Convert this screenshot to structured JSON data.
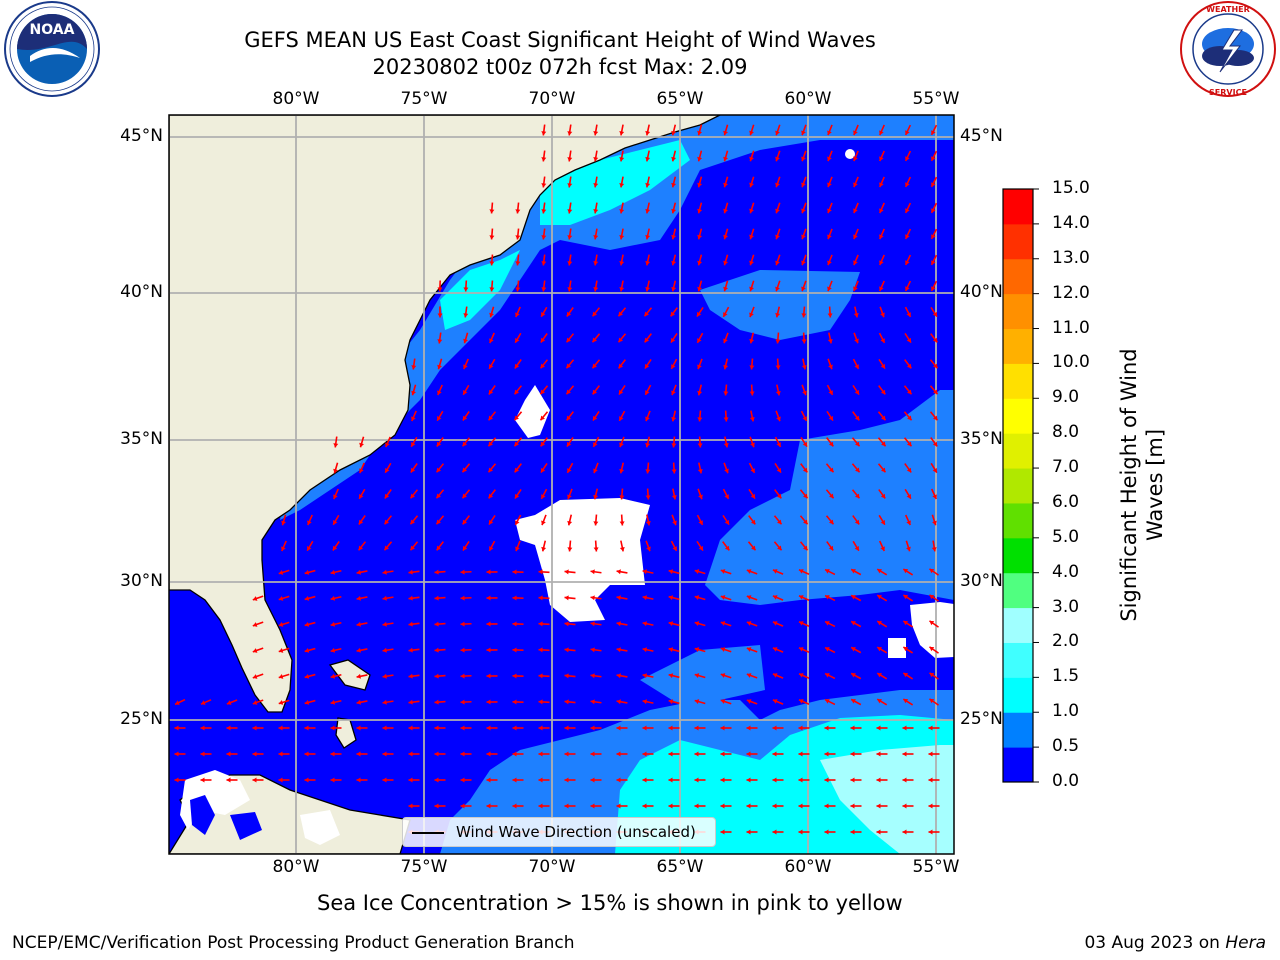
{
  "title_line1": "GEFS MEAN US East Coast Significant Height of Wind Waves",
  "title_line2": "20230802 t00z 072h fcst   Max: 2.09",
  "lon_ticks": [
    "80°W",
    "75°W",
    "70°W",
    "65°W",
    "60°W",
    "55°W"
  ],
  "lat_ticks": [
    "45°N",
    "40°N",
    "35°N",
    "30°N",
    "25°N"
  ],
  "legend_label": "Wind Wave Direction (unscaled)",
  "colorbar": {
    "label": "Significant Height of Wind Waves [m]",
    "ticks": [
      "0.0",
      "0.5",
      "1.0",
      "1.5",
      "2.0",
      "3.0",
      "4.0",
      "5.0",
      "6.0",
      "7.0",
      "8.0",
      "9.0",
      "10.0",
      "11.0",
      "12.0",
      "13.0",
      "14.0",
      "15.0"
    ],
    "colors": [
      "#0000ff",
      "#0080ff",
      "#00ffff",
      "#40ffff",
      "#a0ffff",
      "#50ff80",
      "#00e000",
      "#60e000",
      "#b0e800",
      "#e0f000",
      "#ffff00",
      "#ffe000",
      "#ffb000",
      "#ff9000",
      "#ff6800",
      "#ff3000",
      "#ff0000"
    ]
  },
  "colors": {
    "land": "#efeedc",
    "band_0_05": "#0000ff",
    "band_05_1": "#1e80ff",
    "band_1_15": "#00ffff",
    "band_15_2": "#a6ffff",
    "arrow": "#ff0000",
    "grid": "#b0b0b0"
  },
  "caption": "Sea Ice Concentration > 15% is shown in pink to yellow",
  "footer_left": "NCEP/EMC/Verification Post Processing Product Generation Branch",
  "footer_right_date": "03 Aug 2023 on",
  "footer_right_machine": "Hera",
  "logos": {
    "noaa": "NOAA",
    "nws": "NATIONAL WEATHER SERVICE"
  }
}
